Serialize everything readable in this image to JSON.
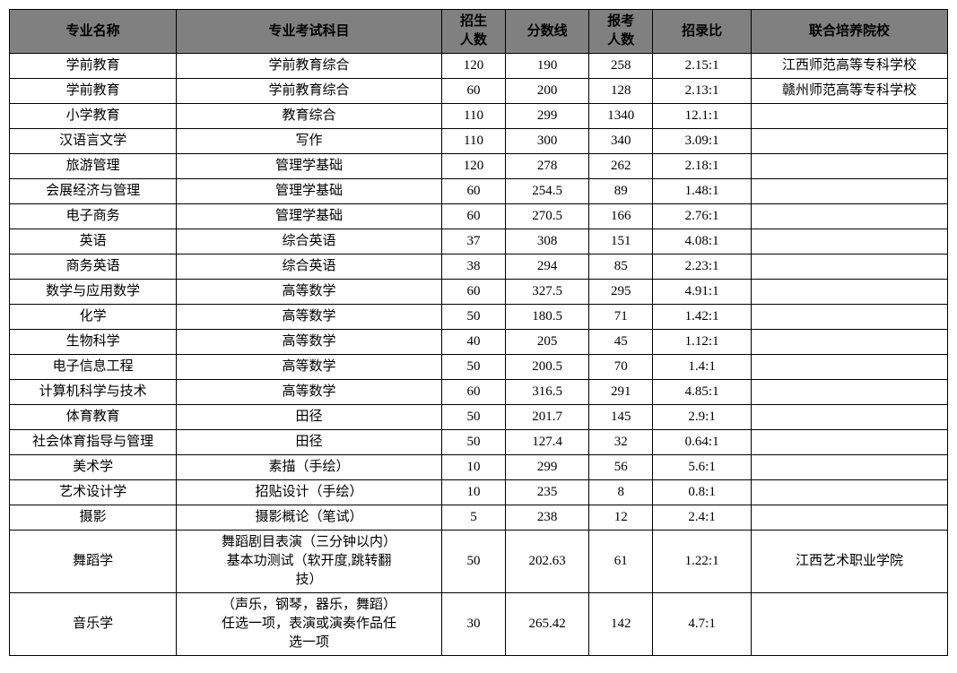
{
  "table": {
    "headers": {
      "major": "专业名称",
      "subject": "专业考试科目",
      "enroll": "招生\n人数",
      "score": "分数线",
      "apply": "报考\n人数",
      "ratio": "招录比",
      "school": "联合培养院校"
    },
    "rows": [
      {
        "major": "学前教育",
        "subject": "学前教育综合",
        "enroll": "120",
        "score": "190",
        "apply": "258",
        "ratio": "2.15:1",
        "school": "江西师范高等专科学校"
      },
      {
        "major": "学前教育",
        "subject": "学前教育综合",
        "enroll": "60",
        "score": "200",
        "apply": "128",
        "ratio": "2.13:1",
        "school": "赣州师范高等专科学校"
      },
      {
        "major": "小学教育",
        "subject": "教育综合",
        "enroll": "110",
        "score": "299",
        "apply": "1340",
        "ratio": "12.1:1",
        "school": ""
      },
      {
        "major": "汉语言文学",
        "subject": "写作",
        "enroll": "110",
        "score": "300",
        "apply": "340",
        "ratio": "3.09:1",
        "school": ""
      },
      {
        "major": "旅游管理",
        "subject": "管理学基础",
        "enroll": "120",
        "score": "278",
        "apply": "262",
        "ratio": "2.18:1",
        "school": ""
      },
      {
        "major": "会展经济与管理",
        "subject": "管理学基础",
        "enroll": "60",
        "score": "254.5",
        "apply": "89",
        "ratio": "1.48:1",
        "school": ""
      },
      {
        "major": "电子商务",
        "subject": "管理学基础",
        "enroll": "60",
        "score": "270.5",
        "apply": "166",
        "ratio": "2.76:1",
        "school": ""
      },
      {
        "major": "英语",
        "subject": "综合英语",
        "enroll": "37",
        "score": "308",
        "apply": "151",
        "ratio": "4.08:1",
        "school": ""
      },
      {
        "major": "商务英语",
        "subject": "综合英语",
        "enroll": "38",
        "score": "294",
        "apply": "85",
        "ratio": "2.23:1",
        "school": ""
      },
      {
        "major": "数学与应用数学",
        "subject": "高等数学",
        "enroll": "60",
        "score": "327.5",
        "apply": "295",
        "ratio": "4.91:1",
        "school": ""
      },
      {
        "major": "化学",
        "subject": "高等数学",
        "enroll": "50",
        "score": "180.5",
        "apply": "71",
        "ratio": "1.42:1",
        "school": ""
      },
      {
        "major": "生物科学",
        "subject": "高等数学",
        "enroll": "40",
        "score": "205",
        "apply": "45",
        "ratio": "1.12:1",
        "school": ""
      },
      {
        "major": "电子信息工程",
        "subject": "高等数学",
        "enroll": "50",
        "score": "200.5",
        "apply": "70",
        "ratio": "1.4:1",
        "school": ""
      },
      {
        "major": "计算机科学与技术",
        "subject": "高等数学",
        "enroll": "60",
        "score": "316.5",
        "apply": "291",
        "ratio": "4.85:1",
        "school": ""
      },
      {
        "major": "体育教育",
        "subject": "田径",
        "enroll": "50",
        "score": "201.7",
        "apply": "145",
        "ratio": "2.9:1",
        "school": ""
      },
      {
        "major": "社会体育指导与管理",
        "subject": "田径",
        "enroll": "50",
        "score": "127.4",
        "apply": "32",
        "ratio": "0.64:1",
        "school": ""
      },
      {
        "major": "美术学",
        "subject": "素描（手绘）",
        "enroll": "10",
        "score": "299",
        "apply": "56",
        "ratio": "5.6:1",
        "school": ""
      },
      {
        "major": "艺术设计学",
        "subject": "招贴设计（手绘）",
        "enroll": "10",
        "score": "235",
        "apply": "8",
        "ratio": "0.8:1",
        "school": ""
      },
      {
        "major": "摄影",
        "subject": "摄影概论（笔试）",
        "enroll": "5",
        "score": "238",
        "apply": "12",
        "ratio": "2.4:1",
        "school": ""
      },
      {
        "major": "舞蹈学",
        "subject": "舞蹈剧目表演（三分钟以内）\n基本功测试（软开度,跳转翻\n技）",
        "enroll": "50",
        "score": "202.63",
        "apply": "61",
        "ratio": "1.22:1",
        "school": "江西艺术职业学院"
      },
      {
        "major": "音乐学",
        "subject": "（声乐，钢琴，器乐，舞蹈）\n任选一项，表演或演奏作品任\n选一项",
        "enroll": "30",
        "score": "265.42",
        "apply": "142",
        "ratio": "4.7:1",
        "school": ""
      }
    ],
    "styling": {
      "header_bg": "#808080",
      "border_color": "#000000",
      "background_color": "#ffffff",
      "text_color": "#000000",
      "font_size": 15,
      "total_width": 1047,
      "col_widths": {
        "major": 170,
        "subject": 270,
        "enroll": 65,
        "score": 85,
        "apply": 65,
        "ratio": 100,
        "school": 200
      }
    }
  }
}
